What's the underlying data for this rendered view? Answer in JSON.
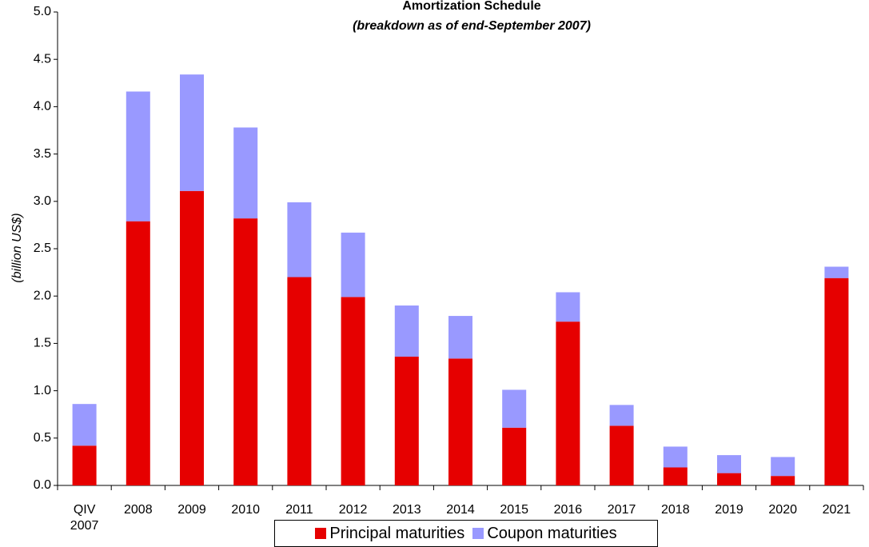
{
  "chart_data": {
    "type": "stacked_bar",
    "title": "Amortization Schedule",
    "subtitle": "(breakdown as of end-September 2007)",
    "y_label": "(billion US$)",
    "categories": [
      "QIV 2007",
      "2008",
      "2009",
      "2010",
      "2011",
      "2012",
      "2013",
      "2014",
      "2015",
      "2016",
      "2017",
      "2018",
      "2019",
      "2020",
      "2021"
    ],
    "series": [
      {
        "name": "Principal maturities",
        "color": "#e60000",
        "values": [
          0.42,
          2.79,
          3.11,
          2.82,
          2.2,
          1.99,
          1.36,
          1.34,
          0.61,
          1.73,
          0.63,
          0.19,
          0.13,
          0.1,
          2.19
        ]
      },
      {
        "name": "Coupon maturities",
        "color": "#9999ff",
        "values": [
          0.44,
          1.37,
          1.23,
          0.96,
          0.79,
          0.68,
          0.54,
          0.45,
          0.4,
          0.31,
          0.22,
          0.22,
          0.19,
          0.2,
          0.12
        ]
      }
    ],
    "ylim": [
      0,
      5
    ],
    "yticks": [
      {
        "value": 0,
        "label": "0.0"
      },
      {
        "value": 0.5,
        "label": "0.5"
      },
      {
        "value": 1,
        "label": "1.0"
      },
      {
        "value": 1.5,
        "label": "1.5"
      },
      {
        "value": 2,
        "label": "2.0"
      },
      {
        "value": 2.5,
        "label": "2.5"
      },
      {
        "value": 3,
        "label": "3.0"
      },
      {
        "value": 3.5,
        "label": "3.5"
      },
      {
        "value": 4,
        "label": "4.0"
      },
      {
        "value": 4.5,
        "label": "4.5"
      },
      {
        "value": 5,
        "label": "5.0"
      }
    ],
    "grid": false,
    "legend": "bottom"
  }
}
